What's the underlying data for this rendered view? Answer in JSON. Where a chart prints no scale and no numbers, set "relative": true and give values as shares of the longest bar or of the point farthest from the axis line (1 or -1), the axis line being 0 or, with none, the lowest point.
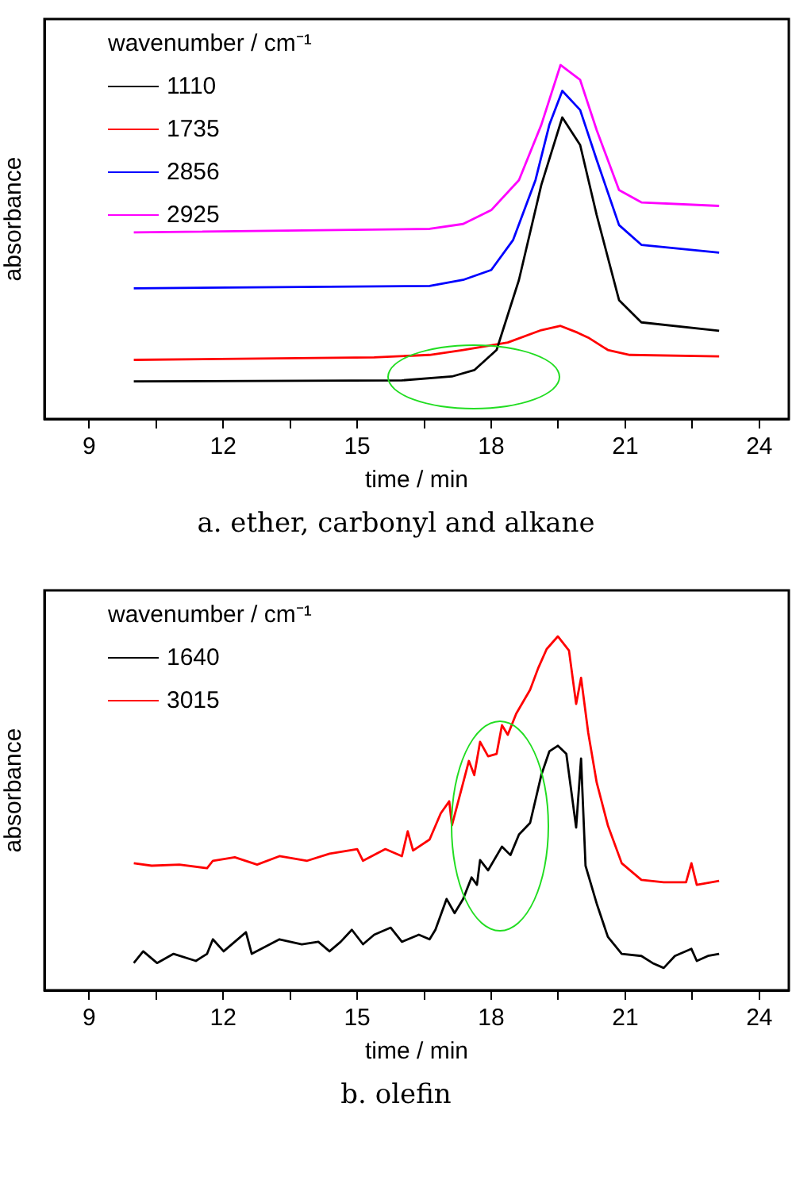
{
  "chart_data": [
    {
      "type": "line",
      "relative": true,
      "xlabel": "time / min",
      "ylabel": "absorbance",
      "legend_title": "wavenumber / cm⁻¹",
      "legend": "top left",
      "grid": false,
      "xlim": [
        8,
        24.66
      ],
      "xticks": [
        9,
        {
          "value": 10.5,
          "label": null
        },
        12,
        {
          "value": 13.5,
          "label": null
        },
        15,
        {
          "value": 16.5,
          "label": null
        },
        18,
        {
          "value": 19.5,
          "label": null
        },
        21,
        {
          "value": 22.5,
          "label": null
        },
        24
      ],
      "annotations": [
        "a.  ether, carbonyl and alkane"
      ],
      "series": [
        {
          "name": "1110",
          "color": "#000000",
          "x": [
            10,
            16.0,
            17.12,
            17.62,
            18.12,
            18.62,
            19.12,
            19.59,
            19.99,
            20.36,
            20.86,
            21.36,
            23.1
          ],
          "values": [
            0.106,
            0.109,
            0.12,
            0.138,
            0.195,
            0.393,
            0.661,
            0.852,
            0.774,
            0.576,
            0.336,
            0.273,
            0.249
          ]
        },
        {
          "name": "1735",
          "color": "#ff0000",
          "x": [
            10,
            15.38,
            16.62,
            17.37,
            18.37,
            19.12,
            19.55,
            19.93,
            20.17,
            20.61,
            21.1,
            23.1
          ],
          "values": [
            0.167,
            0.174,
            0.181,
            0.195,
            0.216,
            0.251,
            0.263,
            0.244,
            0.23,
            0.195,
            0.181,
            0.177
          ]
        },
        {
          "name": "2856",
          "color": "#0000ff",
          "x": [
            10,
            16.62,
            17.37,
            18.0,
            18.49,
            18.99,
            19.3,
            19.59,
            19.99,
            20.36,
            20.86,
            21.36,
            23.1
          ],
          "values": [
            0.369,
            0.376,
            0.393,
            0.421,
            0.506,
            0.675,
            0.831,
            0.927,
            0.873,
            0.732,
            0.548,
            0.492,
            0.47
          ]
        },
        {
          "name": "2925",
          "color": "#ff00ff",
          "x": [
            10,
            16.62,
            17.37,
            18.0,
            18.62,
            19.12,
            19.55,
            19.99,
            20.36,
            20.86,
            21.36,
            23.1
          ],
          "values": [
            0.527,
            0.537,
            0.551,
            0.59,
            0.675,
            0.831,
            1.0,
            0.958,
            0.816,
            0.647,
            0.612,
            0.602
          ]
        }
      ]
    },
    {
      "type": "line",
      "relative": true,
      "xlabel": "time / min",
      "ylabel": "absorbance",
      "legend_title": "wavenumber / cm⁻¹",
      "legend": "top left",
      "grid": false,
      "xlim": [
        8,
        24.66
      ],
      "xticks": [
        9,
        {
          "value": 10.5,
          "label": null
        },
        12,
        {
          "value": 13.5,
          "label": null
        },
        15,
        {
          "value": 16.5,
          "label": null
        },
        18,
        {
          "value": 19.5,
          "label": null
        },
        21,
        {
          "value": 22.5,
          "label": null
        },
        24
      ],
      "annotations": [
        "b.  olefin"
      ],
      "series": [
        {
          "name": "1640",
          "color": "#000000",
          "x": [
            10.0,
            10.21,
            10.52,
            10.89,
            11.39,
            11.64,
            11.77,
            12.01,
            12.51,
            12.64,
            13.26,
            13.76,
            14.13,
            14.38,
            14.63,
            14.88,
            15.13,
            15.38,
            15.75,
            16.0,
            16.38,
            16.62,
            16.75,
            17.0,
            17.18,
            17.37,
            17.56,
            17.68,
            17.75,
            17.93,
            18.24,
            18.43,
            18.62,
            18.87,
            19.12,
            19.3,
            19.49,
            19.68,
            19.9,
            20.01,
            20.11,
            20.36,
            20.61,
            20.92,
            21.36,
            21.61,
            21.86,
            22.11,
            22.48,
            22.6,
            22.85,
            23.1
          ],
          "values": [
            0.077,
            0.11,
            0.077,
            0.103,
            0.083,
            0.103,
            0.144,
            0.11,
            0.164,
            0.103,
            0.144,
            0.13,
            0.137,
            0.11,
            0.137,
            0.171,
            0.13,
            0.157,
            0.177,
            0.137,
            0.157,
            0.144,
            0.171,
            0.258,
            0.218,
            0.258,
            0.319,
            0.298,
            0.368,
            0.339,
            0.406,
            0.382,
            0.44,
            0.473,
            0.608,
            0.675,
            0.691,
            0.668,
            0.46,
            0.655,
            0.352,
            0.245,
            0.151,
            0.103,
            0.097,
            0.077,
            0.063,
            0.097,
            0.117,
            0.083,
            0.097,
            0.103
          ]
        },
        {
          "name": "3015",
          "color": "#ff0000",
          "x": [
            10.0,
            10.4,
            11.02,
            11.64,
            11.77,
            12.26,
            12.76,
            13.26,
            13.88,
            14.38,
            15.0,
            15.13,
            15.63,
            16.0,
            16.13,
            16.25,
            16.62,
            16.87,
            17.06,
            17.12,
            17.5,
            17.62,
            17.75,
            17.93,
            18.12,
            18.24,
            18.37,
            18.56,
            18.87,
            19.05,
            19.24,
            19.49,
            19.74,
            19.9,
            20.01,
            20.17,
            20.36,
            20.61,
            20.92,
            21.36,
            21.86,
            22.36,
            22.48,
            22.6,
            23.1
          ],
          "values": [
            0.359,
            0.352,
            0.355,
            0.345,
            0.366,
            0.376,
            0.355,
            0.379,
            0.366,
            0.386,
            0.399,
            0.366,
            0.399,
            0.379,
            0.449,
            0.395,
            0.426,
            0.5,
            0.534,
            0.466,
            0.648,
            0.608,
            0.702,
            0.661,
            0.668,
            0.749,
            0.722,
            0.782,
            0.849,
            0.91,
            0.964,
            1.0,
            0.96,
            0.809,
            0.883,
            0.728,
            0.587,
            0.466,
            0.359,
            0.312,
            0.305,
            0.305,
            0.359,
            0.298,
            0.309
          ]
        }
      ]
    }
  ]
}
